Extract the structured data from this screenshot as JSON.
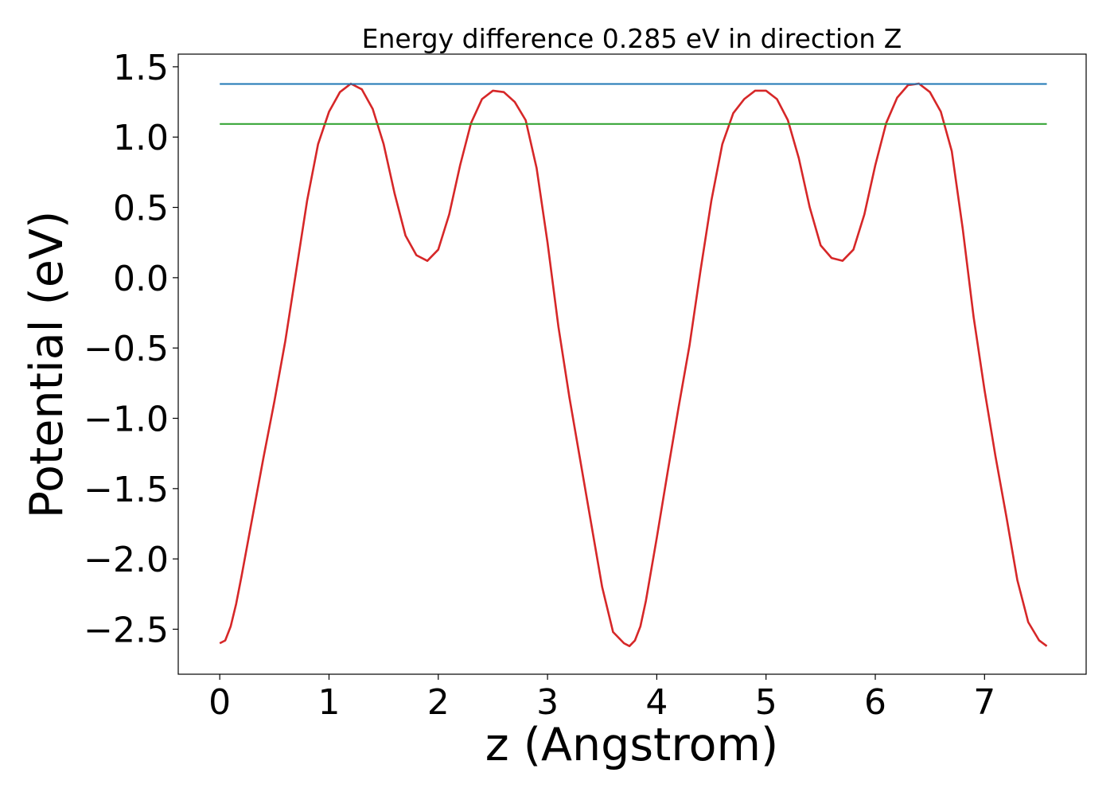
{
  "chart_data": {
    "type": "line",
    "title": "Energy difference 0.285 eV in direction Z",
    "xlabel": "z (Angstrom)",
    "ylabel": "Potential (eV)",
    "xlim": [
      -0.38,
      7.93
    ],
    "ylim": [
      -2.82,
      1.59
    ],
    "xticks": [
      0,
      1,
      2,
      3,
      4,
      5,
      6,
      7
    ],
    "xtick_labels": [
      "0",
      "1",
      "2",
      "3",
      "4",
      "5",
      "6",
      "7"
    ],
    "yticks": [
      1.5,
      1.0,
      0.5,
      0.0,
      -0.5,
      -1.0,
      -1.5,
      -2.0,
      -2.5
    ],
    "ytick_labels": [
      "1.5",
      "1.0",
      "0.5",
      "0.0",
      "−0.5",
      "−1.0",
      "−1.5",
      "−2.0",
      "−2.5"
    ],
    "grid": false,
    "legend": "none",
    "series": [
      {
        "color": "#d62728",
        "x": [
          0.0,
          0.05,
          0.1,
          0.15,
          0.2,
          0.3,
          0.4,
          0.5,
          0.6,
          0.7,
          0.8,
          0.9,
          1.0,
          1.1,
          1.2,
          1.3,
          1.4,
          1.5,
          1.6,
          1.7,
          1.8,
          1.9,
          2.0,
          2.1,
          2.2,
          2.3,
          2.4,
          2.5,
          2.6,
          2.7,
          2.8,
          2.9,
          3.0,
          3.1,
          3.2,
          3.3,
          3.4,
          3.5,
          3.6,
          3.7,
          3.75,
          3.8,
          3.85,
          3.9,
          4.0,
          4.1,
          4.2,
          4.3,
          4.4,
          4.5,
          4.6,
          4.7,
          4.8,
          4.9,
          5.0,
          5.1,
          5.2,
          5.3,
          5.4,
          5.5,
          5.6,
          5.7,
          5.8,
          5.9,
          6.0,
          6.1,
          6.2,
          6.3,
          6.4,
          6.5,
          6.6,
          6.7,
          6.8,
          6.9,
          7.0,
          7.1,
          7.2,
          7.3,
          7.4,
          7.5,
          7.57
        ],
        "y": [
          -2.6,
          -2.58,
          -2.48,
          -2.32,
          -2.12,
          -1.7,
          -1.28,
          -0.88,
          -0.45,
          0.05,
          0.55,
          0.95,
          1.18,
          1.32,
          1.38,
          1.34,
          1.2,
          0.95,
          0.6,
          0.3,
          0.16,
          0.12,
          0.2,
          0.45,
          0.8,
          1.1,
          1.27,
          1.33,
          1.32,
          1.25,
          1.12,
          0.78,
          0.25,
          -0.35,
          -0.85,
          -1.3,
          -1.75,
          -2.2,
          -2.52,
          -2.6,
          -2.62,
          -2.58,
          -2.48,
          -2.3,
          -1.85,
          -1.38,
          -0.92,
          -0.48,
          0.05,
          0.55,
          0.95,
          1.17,
          1.27,
          1.33,
          1.33,
          1.27,
          1.12,
          0.85,
          0.5,
          0.23,
          0.14,
          0.12,
          0.2,
          0.45,
          0.8,
          1.1,
          1.28,
          1.37,
          1.38,
          1.32,
          1.18,
          0.9,
          0.35,
          -0.28,
          -0.8,
          -1.27,
          -1.7,
          -2.15,
          -2.45,
          -2.58,
          -2.62
        ]
      },
      {
        "color": "#1f77b4",
        "x": [
          0.0,
          7.57
        ],
        "y": [
          1.378,
          1.378
        ]
      },
      {
        "color": "#2ca02c",
        "x": [
          0.0,
          7.57
        ],
        "y": [
          1.093,
          1.093
        ]
      }
    ]
  }
}
